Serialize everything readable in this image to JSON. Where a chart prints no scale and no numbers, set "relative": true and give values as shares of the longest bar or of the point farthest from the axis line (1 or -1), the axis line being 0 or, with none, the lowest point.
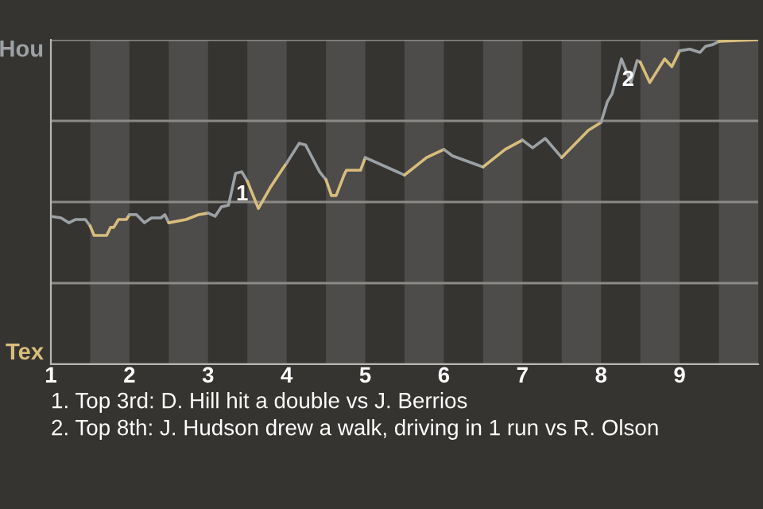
{
  "chart_data": {
    "type": "line",
    "relative": true,
    "series": [
      {
        "name": "Hou",
        "color": "#9ba1a4",
        "x": [
          1.0,
          1.13,
          1.23,
          1.31,
          1.44,
          1.5
        ],
        "values": [
          0.456,
          0.451,
          0.436,
          0.446,
          0.446,
          0.426
        ]
      },
      {
        "name": "Tex",
        "color": "#d8bd7c",
        "x": [
          1.5,
          1.55,
          1.71,
          1.76,
          1.8,
          1.86,
          1.96,
          2.0
        ],
        "values": [
          0.426,
          0.397,
          0.397,
          0.422,
          0.422,
          0.446,
          0.446,
          0.461
        ]
      },
      {
        "color": "#9ba1a4",
        "x": [
          2.0,
          2.09,
          2.19,
          2.28,
          2.4,
          2.45,
          2.5
        ],
        "values": [
          0.461,
          0.461,
          0.436,
          0.451,
          0.451,
          0.461,
          0.436
        ]
      },
      {
        "color": "#d8bd7c",
        "x": [
          2.5,
          2.72,
          2.88,
          3.0
        ],
        "values": [
          0.436,
          0.446,
          0.461,
          0.466
        ]
      },
      {
        "color": "#9ba1a4",
        "x": [
          3.0,
          3.09,
          3.17,
          3.26,
          3.35,
          3.43,
          3.5
        ],
        "values": [
          0.466,
          0.456,
          0.485,
          0.49,
          0.588,
          0.593,
          0.564
        ]
      },
      {
        "color": "#d8bd7c",
        "x": [
          3.5,
          3.64,
          3.79,
          3.95,
          4.0
        ],
        "values": [
          0.564,
          0.48,
          0.544,
          0.603,
          0.62
        ]
      },
      {
        "color": "#9ba1a4",
        "x": [
          4.0,
          4.16,
          4.24,
          4.42,
          4.5
        ],
        "values": [
          0.62,
          0.681,
          0.676,
          0.593,
          0.569
        ]
      },
      {
        "color": "#d8bd7c",
        "x": [
          4.5,
          4.57,
          4.63,
          4.73,
          4.76,
          4.94,
          5.0
        ],
        "values": [
          0.569,
          0.52,
          0.52,
          0.583,
          0.598,
          0.598,
          0.637
        ]
      },
      {
        "color": "#9ba1a4",
        "x": [
          5.0,
          5.36,
          5.5
        ],
        "values": [
          0.637,
          0.598,
          0.583
        ]
      },
      {
        "color": "#d8bd7c",
        "x": [
          5.5,
          5.78,
          6.0
        ],
        "values": [
          0.583,
          0.637,
          0.662
        ]
      },
      {
        "color": "#9ba1a4",
        "x": [
          6.0,
          6.11,
          6.5
        ],
        "values": [
          0.662,
          0.642,
          0.608
        ]
      },
      {
        "color": "#d8bd7c",
        "x": [
          6.5,
          6.78,
          7.0
        ],
        "values": [
          0.608,
          0.662,
          0.691
        ]
      },
      {
        "color": "#9ba1a4",
        "x": [
          7.0,
          7.13,
          7.29,
          7.5
        ],
        "values": [
          0.691,
          0.667,
          0.696,
          0.637
        ]
      },
      {
        "color": "#d8bd7c",
        "x": [
          7.5,
          7.84,
          8.0
        ],
        "values": [
          0.637,
          0.721,
          0.745
        ]
      },
      {
        "color": "#9ba1a4",
        "x": [
          8.0,
          8.08,
          8.14,
          8.26,
          8.38,
          8.46,
          8.5
        ],
        "values": [
          0.745,
          0.809,
          0.833,
          0.941,
          0.868,
          0.936,
          0.931
        ]
      },
      {
        "color": "#d8bd7c",
        "x": [
          8.5,
          8.62,
          8.81,
          8.9,
          9.0
        ],
        "values": [
          0.931,
          0.868,
          0.941,
          0.917,
          0.966
        ]
      },
      {
        "color": "#9ba1a4",
        "x": [
          9.0,
          9.13,
          9.26,
          9.33,
          9.42,
          9.5
        ],
        "values": [
          0.966,
          0.971,
          0.961,
          0.98,
          0.985,
          0.995
        ]
      },
      {
        "color": "#d8bd7c",
        "x": [
          9.5,
          10.0
        ],
        "values": [
          0.995,
          1.0
        ]
      }
    ],
    "xlim": [
      1,
      10
    ],
    "xticks": [
      1,
      2,
      3,
      4,
      5,
      6,
      7,
      8,
      9
    ],
    "grid": "y",
    "bands": [
      {
        "axis": "x",
        "from": 1.5,
        "to": 2,
        "color": "#4d4c4a"
      },
      {
        "axis": "x",
        "from": 2.5,
        "to": 3,
        "color": "#4d4c4a"
      },
      {
        "axis": "x",
        "from": 3.5,
        "to": 4,
        "color": "#4d4c4a"
      },
      {
        "axis": "x",
        "from": 4.5,
        "to": 5,
        "color": "#4d4c4a"
      },
      {
        "axis": "x",
        "from": 5.5,
        "to": 6,
        "color": "#4d4c4a"
      },
      {
        "axis": "x",
        "from": 6.5,
        "to": 7,
        "color": "#4d4c4a"
      },
      {
        "axis": "x",
        "from": 7.5,
        "to": 8,
        "color": "#4d4c4a"
      },
      {
        "axis": "x",
        "from": 8.5,
        "to": 9,
        "color": "#4d4c4a"
      },
      {
        "axis": "x",
        "from": 9.5,
        "to": 10,
        "color": "#4d4c4a"
      }
    ],
    "annotations": [
      {
        "text": "1",
        "x": 3.35,
        "y": 0.588
      },
      {
        "text": "2",
        "x": 8.26,
        "y": 0.941
      },
      "1. Top 3rd: D. Hill hit a double vs J. Berrios",
      "2. Top 8th: J. Hudson drew a walk, driving in 1 run vs R. Olson"
    ]
  }
}
